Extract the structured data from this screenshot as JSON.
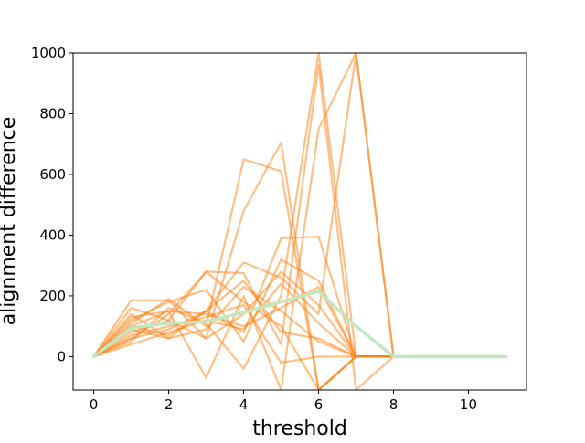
{
  "chart_data": {
    "type": "line",
    "title": "",
    "xlabel": "threshold",
    "ylabel": "alignment difference",
    "xlim": [
      -0.55,
      11.55
    ],
    "ylim": [
      -110,
      1000
    ],
    "xticks": [
      0,
      2,
      4,
      6,
      8,
      10
    ],
    "yticks": [
      0,
      200,
      400,
      600,
      800,
      1000
    ],
    "grid": false,
    "legend": "none",
    "colors": {
      "runs": "#ff7f0e",
      "mean": "#c2e6c2"
    },
    "series": [
      {
        "x": [
          0,
          1,
          2,
          3,
          4,
          5,
          6,
          7,
          8,
          9,
          10,
          11
        ],
        "y": [
          0,
          130,
          150,
          140,
          100,
          160,
          230,
          0,
          0,
          0,
          0,
          0
        ]
      },
      {
        "x": [
          0,
          1,
          2,
          3,
          4,
          5,
          6,
          7,
          8,
          9,
          10,
          11
        ],
        "y": [
          0,
          60,
          90,
          150,
          80,
          390,
          395,
          0,
          0,
          0,
          0,
          0
        ]
      },
      {
        "x": [
          0,
          1,
          2,
          3,
          4,
          5,
          6,
          7,
          8,
          9,
          10,
          11
        ],
        "y": [
          0,
          110,
          190,
          100,
          650,
          610,
          -110,
          0,
          0,
          0,
          0,
          0
        ]
      },
      {
        "x": [
          0,
          1,
          2,
          3,
          4,
          5,
          6,
          7,
          8,
          9,
          10,
          11
        ],
        "y": [
          0,
          185,
          185,
          60,
          480,
          705,
          -110,
          0,
          0,
          0,
          0,
          0
        ]
      },
      {
        "x": [
          0,
          1,
          2,
          3,
          4,
          5,
          6,
          7,
          8,
          9,
          10,
          11
        ],
        "y": [
          0,
          80,
          120,
          280,
          275,
          40,
          960,
          -110,
          0,
          0,
          0,
          0
        ]
      },
      {
        "x": [
          0,
          1,
          2,
          3,
          4,
          5,
          6,
          7,
          8,
          9,
          10,
          11
        ],
        "y": [
          0,
          50,
          160,
          110,
          -40,
          200,
          1000,
          0,
          0,
          0,
          0,
          0
        ]
      },
      {
        "x": [
          0,
          1,
          2,
          3,
          4,
          5,
          6,
          7,
          8,
          9,
          10,
          11
        ],
        "y": [
          0,
          100,
          150,
          -70,
          200,
          -110,
          750,
          1000,
          0,
          0,
          0,
          0
        ]
      },
      {
        "x": [
          0,
          1,
          2,
          3,
          4,
          5,
          6,
          7,
          8,
          9,
          10,
          11
        ],
        "y": [
          0,
          90,
          60,
          150,
          310,
          260,
          140,
          1000,
          0,
          0,
          0,
          0
        ]
      },
      {
        "x": [
          0,
          1,
          2,
          3,
          4,
          5,
          6,
          7,
          8,
          9,
          10,
          11
        ],
        "y": [
          0,
          120,
          180,
          220,
          50,
          320,
          250,
          0,
          0,
          0,
          0,
          0
        ]
      },
      {
        "x": [
          0,
          1,
          2,
          3,
          4,
          5,
          6,
          7,
          8,
          9,
          10,
          11
        ],
        "y": [
          0,
          70,
          100,
          130,
          170,
          -20,
          0,
          0,
          0,
          0,
          0,
          0
        ]
      },
      {
        "x": [
          0,
          1,
          2,
          3,
          4,
          5,
          6,
          7,
          8,
          9,
          10,
          11
        ],
        "y": [
          0,
          140,
          60,
          90,
          230,
          150,
          50,
          0,
          0,
          0,
          0,
          0
        ]
      },
      {
        "x": [
          0,
          1,
          2,
          3,
          4,
          5,
          6,
          7,
          8,
          9,
          10,
          11
        ],
        "y": [
          0,
          40,
          80,
          120,
          90,
          240,
          110,
          0,
          0,
          0,
          0,
          0
        ]
      },
      {
        "x": [
          0,
          1,
          2,
          3,
          4,
          5,
          6,
          7,
          8,
          9,
          10,
          11
        ],
        "y": [
          0,
          160,
          120,
          60,
          140,
          280,
          170,
          0,
          0,
          0,
          0,
          0
        ]
      },
      {
        "x": [
          0,
          1,
          2,
          3,
          4,
          5,
          6,
          7,
          8,
          9,
          10,
          11
        ],
        "y": [
          0,
          100,
          70,
          150,
          250,
          80,
          60,
          0,
          0,
          0,
          0,
          0
        ]
      },
      {
        "x": [
          0,
          1,
          2,
          3,
          4,
          5,
          6,
          7,
          8,
          9,
          10,
          11
        ],
        "y": [
          0,
          60,
          140,
          280,
          180,
          100,
          -110,
          0,
          0,
          0,
          0,
          0
        ]
      }
    ],
    "mean": {
      "x": [
        0,
        1,
        2,
        3,
        4,
        5,
        6,
        7,
        8,
        9,
        10,
        11
      ],
      "y": [
        0,
        95,
        110,
        115,
        145,
        180,
        215,
        100,
        0,
        0,
        0,
        0
      ]
    }
  }
}
